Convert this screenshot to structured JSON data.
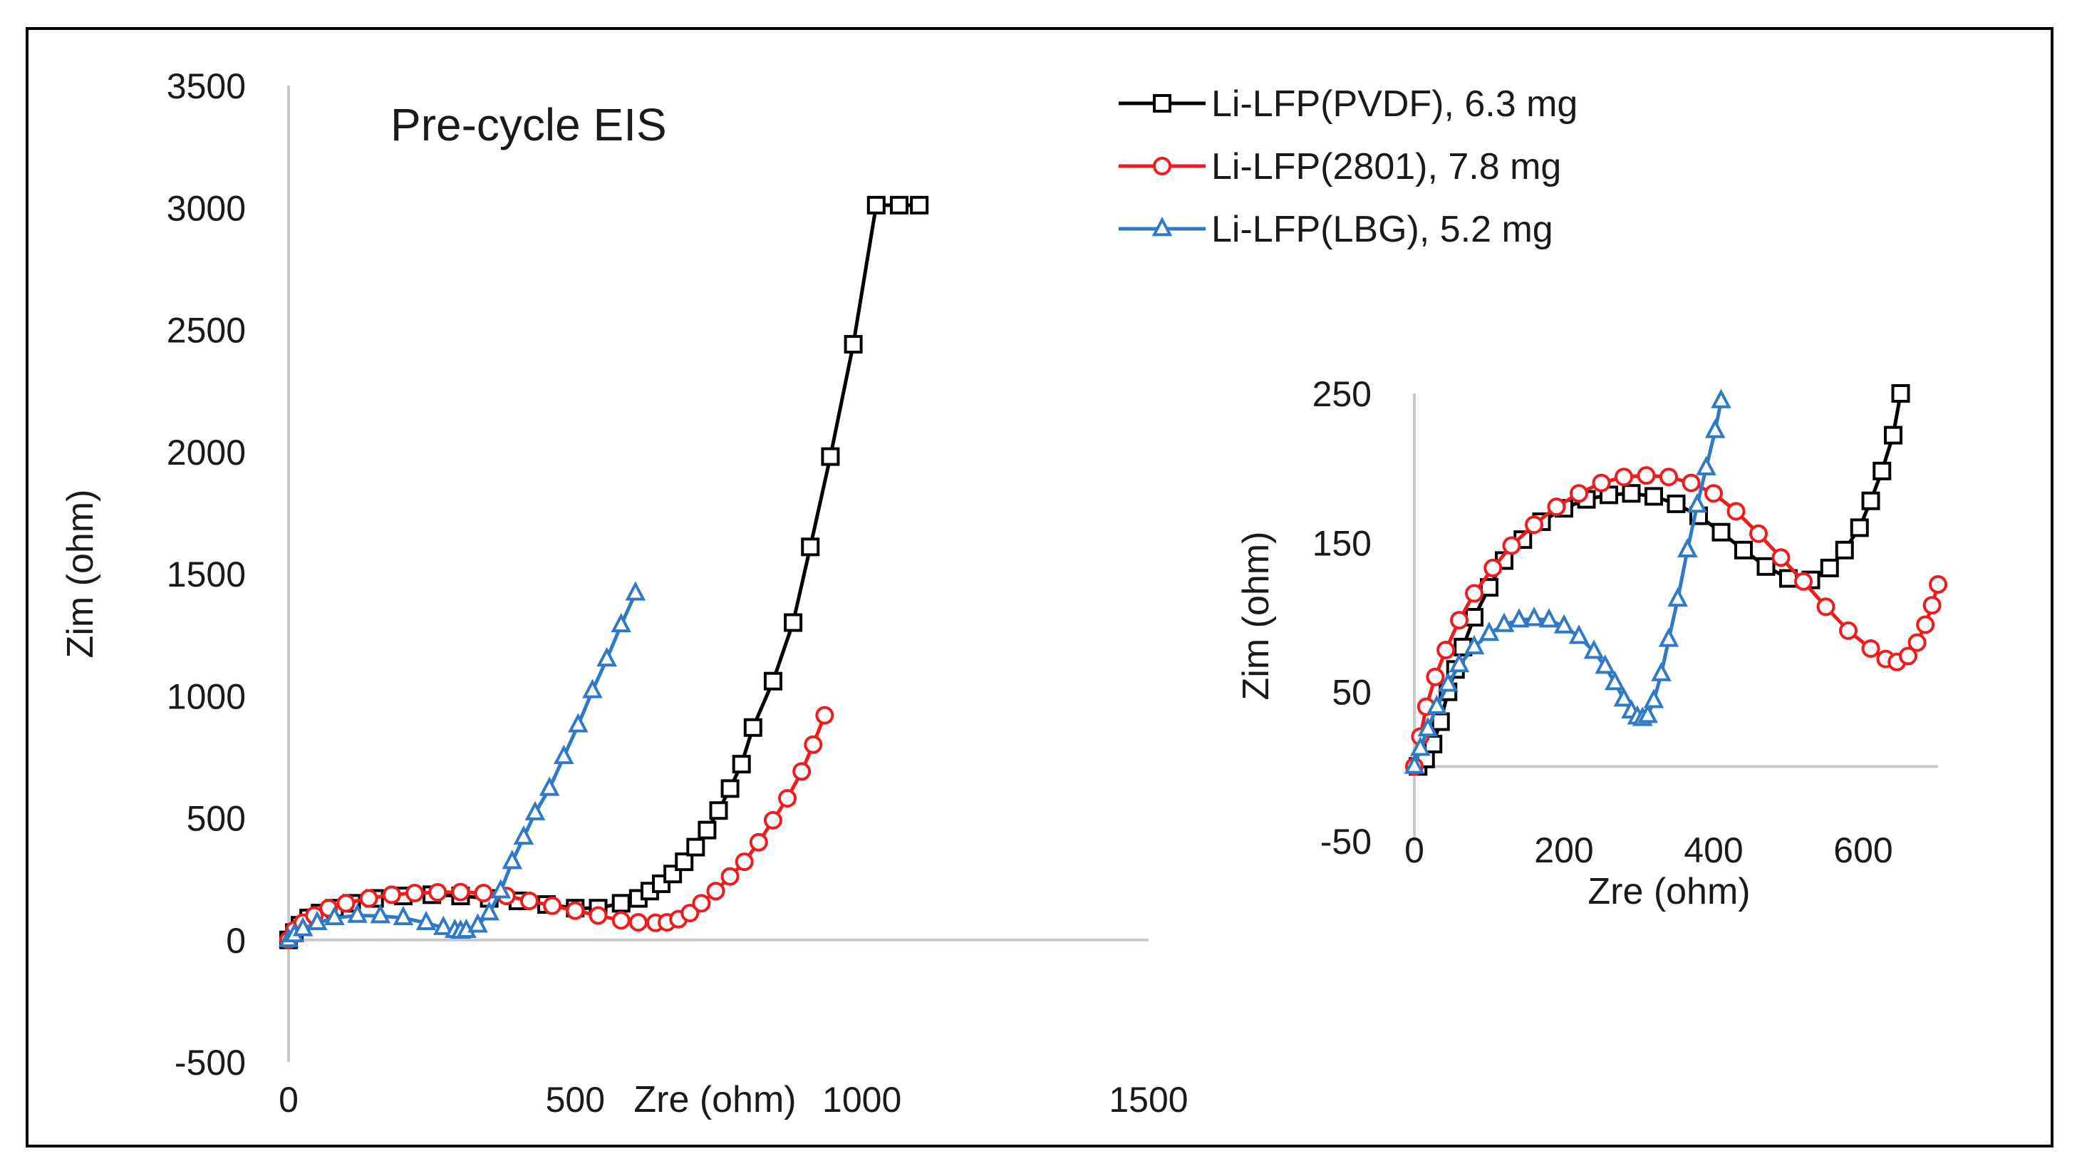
{
  "chart_data": [
    {
      "type": "scatter",
      "title": "Pre-cycle EIS",
      "xlabel": "Zre (ohm)",
      "ylabel": "Zim (ohm)",
      "xlim": [
        0,
        1500
      ],
      "ylim": [
        -500,
        3500
      ],
      "xticks": [
        "0",
        "500",
        "1000",
        "1500"
      ],
      "yticks": [
        "3500",
        "3000",
        "2500",
        "2000",
        "1500",
        "1000",
        "500",
        "0",
        "-500"
      ],
      "legend": "top-right",
      "series": [
        {
          "name": "Li-LFP(PVDF), 6.3 mg",
          "color": "#000000",
          "marker": "square",
          "x": [
            0,
            10,
            20,
            35,
            55,
            80,
            110,
            150,
            200,
            250,
            300,
            350,
            400,
            450,
            500,
            540,
            580,
            610,
            630,
            650,
            670,
            690,
            710,
            730,
            750,
            770,
            790,
            810,
            845,
            880,
            910,
            945,
            985,
            1025,
            1065,
            1100
          ],
          "y": [
            0,
            30,
            60,
            90,
            110,
            130,
            150,
            170,
            180,
            185,
            180,
            170,
            160,
            145,
            130,
            130,
            150,
            170,
            200,
            230,
            270,
            320,
            380,
            450,
            530,
            620,
            720,
            870,
            1060,
            1300,
            1610,
            1980,
            2440,
            3010,
            3010,
            3010
          ]
        },
        {
          "name": "Li-LFP(2801), 7.8 mg",
          "color": "#ee1c1c",
          "marker": "circle",
          "x": [
            0,
            10,
            25,
            45,
            70,
            100,
            140,
            180,
            220,
            260,
            300,
            340,
            380,
            420,
            460,
            500,
            540,
            580,
            610,
            640,
            660,
            680,
            700,
            720,
            745,
            770,
            795,
            820,
            845,
            870,
            895,
            915,
            935
          ],
          "y": [
            0,
            40,
            70,
            100,
            130,
            150,
            170,
            185,
            192,
            195,
            196,
            192,
            180,
            160,
            140,
            120,
            100,
            80,
            72,
            70,
            72,
            85,
            110,
            150,
            200,
            260,
            320,
            400,
            490,
            580,
            690,
            800,
            920
          ],
          "trim": 0
        },
        {
          "name": "Li-LFP(LBG), 5.2 mg",
          "color": "#2f7ac6",
          "marker": "triangle",
          "x": [
            0,
            10,
            25,
            50,
            80,
            120,
            160,
            200,
            240,
            270,
            290,
            300,
            310,
            330,
            350,
            370,
            390,
            410,
            430,
            455,
            480,
            505,
            530,
            555,
            580,
            605
          ],
          "y": [
            0,
            20,
            45,
            70,
            90,
            100,
            98,
            90,
            70,
            50,
            38,
            35,
            38,
            60,
            110,
            200,
            320,
            420,
            520,
            620,
            750,
            880,
            1020,
            1150,
            1290,
            1420
          ]
        }
      ]
    },
    {
      "type": "scatter",
      "title": "",
      "xlabel": "Zre (ohm)",
      "ylabel": "Zim (ohm)",
      "xlim": [
        0,
        700
      ],
      "ylim": [
        -50,
        250
      ],
      "xticks": [
        "0",
        "200",
        "400",
        "600"
      ],
      "yticks": [
        "250",
        "150",
        "50",
        "-50"
      ],
      "series": [
        {
          "name": "Li-LFP(PVDF), 6.3 mg",
          "color": "#000000",
          "marker": "square",
          "x": [
            5,
            15,
            25,
            35,
            45,
            55,
            65,
            80,
            100,
            120,
            145,
            170,
            200,
            230,
            260,
            290,
            320,
            350,
            380,
            410,
            440,
            470,
            500,
            530,
            555,
            575,
            595,
            610,
            625,
            640,
            650
          ],
          "y": [
            0,
            5,
            15,
            30,
            50,
            65,
            80,
            100,
            120,
            138,
            152,
            164,
            173,
            179,
            182,
            183,
            181,
            176,
            168,
            157,
            145,
            134,
            126,
            125,
            133,
            145,
            160,
            178,
            198,
            222,
            250
          ]
        },
        {
          "name": "Li-LFP(2801), 7.8 mg",
          "color": "#ee1c1c",
          "marker": "circle",
          "x": [
            0,
            8,
            16,
            28,
            42,
            60,
            80,
            105,
            130,
            160,
            190,
            220,
            250,
            280,
            310,
            340,
            370,
            400,
            430,
            460,
            490,
            520,
            550,
            580,
            610,
            630,
            645,
            660,
            672,
            683,
            692,
            700
          ],
          "y": [
            0,
            20,
            40,
            60,
            78,
            98,
            116,
            133,
            148,
            162,
            174,
            183,
            190,
            194,
            195,
            194,
            190,
            183,
            171,
            156,
            140,
            124,
            107,
            91,
            79,
            72,
            70,
            74,
            83,
            95,
            108,
            122
          ]
        },
        {
          "name": "Li-LFP(LBG), 5.2 mg",
          "color": "#2f7ac6",
          "marker": "triangle",
          "x": [
            0,
            8,
            18,
            30,
            45,
            60,
            80,
            100,
            120,
            140,
            160,
            180,
            200,
            220,
            240,
            255,
            268,
            280,
            290,
            298,
            305,
            312,
            320,
            330,
            340,
            352,
            365,
            378,
            390,
            402,
            410
          ],
          "y": [
            0,
            12,
            25,
            40,
            55,
            68,
            80,
            89,
            95,
            98,
            99,
            98,
            94,
            87,
            77,
            67,
            56,
            45,
            37,
            33,
            32,
            34,
            44,
            62,
            85,
            112,
            145,
            175,
            200,
            225,
            245
          ]
        }
      ]
    }
  ]
}
